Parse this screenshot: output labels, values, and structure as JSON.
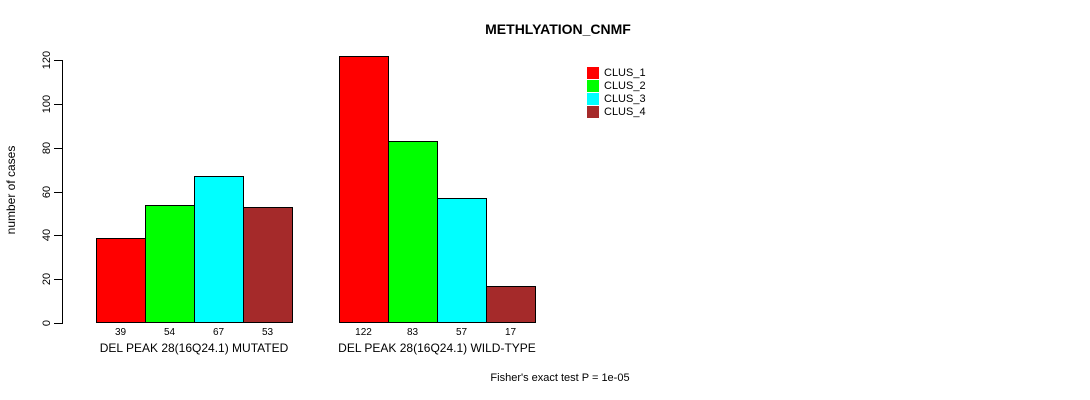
{
  "chart_data": {
    "type": "bar",
    "title": "METHLYATION_CNMF",
    "ylabel": "number of cases",
    "xlabel": "",
    "ylim": [
      0,
      120
    ],
    "yticks": [
      0,
      20,
      40,
      60,
      80,
      100,
      120
    ],
    "grid": false,
    "legend_position": "top-right",
    "series": [
      {
        "name": "CLUS_1",
        "color": "#ff0000"
      },
      {
        "name": "CLUS_2",
        "color": "#00ff00"
      },
      {
        "name": "CLUS_3",
        "color": "#00ffff"
      },
      {
        "name": "CLUS_4",
        "color": "#a52a2a"
      }
    ],
    "groups": [
      {
        "label": "DEL PEAK 28(16Q24.1) MUTATED",
        "values": [
          39,
          54,
          67,
          53
        ]
      },
      {
        "label": "DEL PEAK 28(16Q24.1) WILD-TYPE",
        "values": [
          122,
          83,
          57,
          17
        ]
      }
    ],
    "bar_value_labels_shown": true,
    "annotation": "Fisher's exact test P = 1e-05"
  }
}
